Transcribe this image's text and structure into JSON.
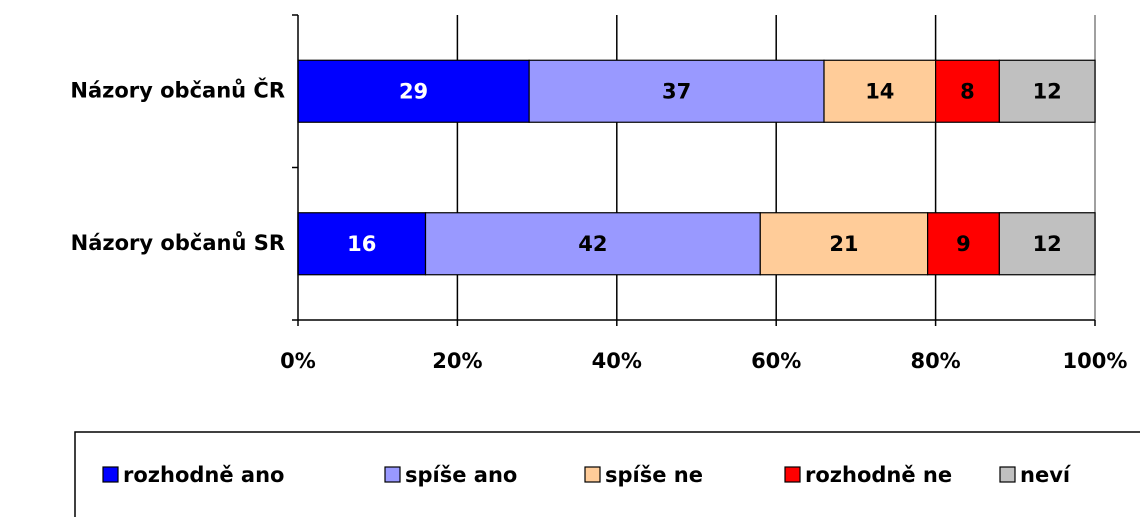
{
  "chart_data": {
    "type": "stacked_bar_horizontal",
    "categories": [
      "Názory občanů ČR",
      "Názory občanů SR"
    ],
    "series": [
      {
        "name": "rozhodně ano",
        "color": "#0000ff",
        "label_color": "#ffffff",
        "values": [
          29,
          16
        ]
      },
      {
        "name": "spíše ano",
        "color": "#9999ff",
        "label_color": "#000000",
        "values": [
          37,
          42
        ]
      },
      {
        "name": "spíše ne",
        "color": "#ffcc99",
        "label_color": "#000000",
        "values": [
          14,
          21
        ]
      },
      {
        "name": "rozhodně ne",
        "color": "#ff0000",
        "label_color": "#000000",
        "values": [
          8,
          9
        ]
      },
      {
        "name": "neví",
        "color": "#c0c0c0",
        "label_color": "#000000",
        "values": [
          12,
          12
        ]
      }
    ],
    "xlim": [
      0,
      100
    ],
    "xticks": [
      {
        "value": 0,
        "label": "0%"
      },
      {
        "value": 20,
        "label": "20%"
      },
      {
        "value": 40,
        "label": "40%"
      },
      {
        "value": 60,
        "label": "60%"
      },
      {
        "value": 80,
        "label": "80%"
      },
      {
        "value": 100,
        "label": "100%"
      }
    ],
    "grid": true,
    "legend": "bottom"
  }
}
